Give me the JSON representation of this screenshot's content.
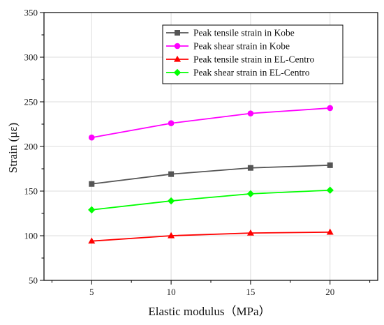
{
  "chart_data": {
    "type": "line",
    "xlabel": "Elastic modulus（MPa）",
    "ylabel": "Strain (με)",
    "xlim": [
      2,
      23
    ],
    "ylim": [
      50,
      350
    ],
    "x_ticks": [
      5,
      10,
      15,
      20
    ],
    "y_ticks": [
      50,
      100,
      150,
      200,
      250,
      300,
      350
    ],
    "x_minor_ticks": [
      2.5,
      7.5,
      12.5,
      17.5,
      22.5
    ],
    "y_minor_ticks": [
      75,
      125,
      175,
      225,
      275,
      325
    ],
    "grid": true,
    "legend_position": "top-right",
    "x": [
      5,
      10,
      15,
      20
    ],
    "series": [
      {
        "name": "Peak tensile strain in Kobe",
        "values": [
          158,
          169,
          176,
          179
        ],
        "color": "#555555",
        "marker": "square"
      },
      {
        "name": "Peak shear strain in Kobe",
        "values": [
          210,
          226,
          237,
          243
        ],
        "color": "#ff00ff",
        "marker": "circle"
      },
      {
        "name": "Peak tensile strain in EL-Centro",
        "values": [
          94,
          100,
          103,
          104
        ],
        "color": "#ff0000",
        "marker": "triangle"
      },
      {
        "name": "Peak shear strain in EL-Centro",
        "values": [
          129,
          139,
          147,
          151
        ],
        "color": "#00ff00",
        "marker": "diamond"
      }
    ]
  }
}
